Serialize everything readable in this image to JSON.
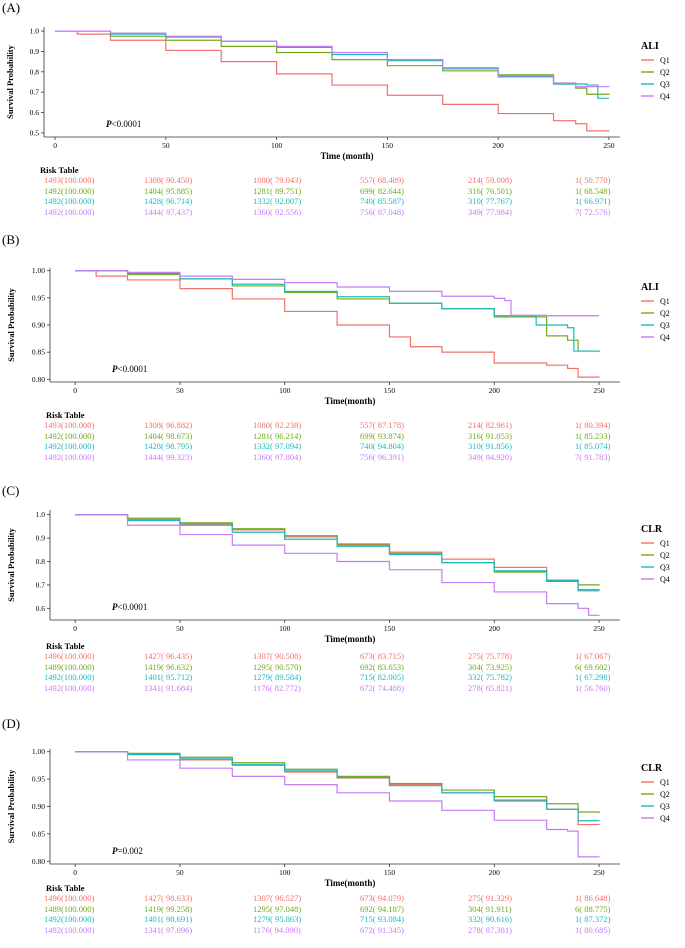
{
  "colors": {
    "Q1": "#f0716b",
    "Q2": "#70a91b",
    "Q3": "#1fb8bd",
    "Q4": "#c57cf5"
  },
  "risk_table_title": "Risk Table",
  "chart_data": [
    {
      "type": "line",
      "panel": "(A)",
      "ylabel": "Survival Probability",
      "xlabel": "Time (month)",
      "xlim": [
        -5,
        255
      ],
      "ylim": [
        0.48,
        1.02
      ],
      "xticks": [
        0,
        50,
        100,
        150,
        200,
        250
      ],
      "yticks": [
        0.5,
        0.6,
        0.7,
        0.8,
        0.9,
        1.0
      ],
      "ytick_labels": [
        "0.5",
        "0.6",
        "0.7",
        "0.8",
        "0.9",
        "1.0"
      ],
      "pvalue": "<0.0001",
      "legend_title": "ALI",
      "series": [
        {
          "name": "Q1",
          "x": [
            0,
            10,
            25,
            50,
            75,
            100,
            125,
            150,
            175,
            200,
            225,
            235,
            240,
            250
          ],
          "y": [
            1.0,
            0.985,
            0.955,
            0.905,
            0.85,
            0.79,
            0.735,
            0.685,
            0.64,
            0.595,
            0.56,
            0.545,
            0.51,
            0.508
          ]
        },
        {
          "name": "Q2",
          "x": [
            0,
            25,
            50,
            75,
            100,
            125,
            150,
            175,
            200,
            225,
            235,
            240,
            250
          ],
          "y": [
            1.0,
            0.975,
            0.955,
            0.925,
            0.895,
            0.86,
            0.83,
            0.805,
            0.785,
            0.74,
            0.72,
            0.69,
            0.686
          ]
        },
        {
          "name": "Q3",
          "x": [
            0,
            25,
            50,
            75,
            100,
            125,
            150,
            175,
            200,
            225,
            240,
            245,
            250
          ],
          "y": [
            1.0,
            0.985,
            0.97,
            0.95,
            0.92,
            0.885,
            0.855,
            0.815,
            0.775,
            0.74,
            0.735,
            0.67,
            0.67
          ]
        },
        {
          "name": "Q4",
          "x": [
            0,
            25,
            50,
            75,
            100,
            125,
            150,
            175,
            200,
            225,
            235,
            250
          ],
          "y": [
            1.0,
            0.99,
            0.975,
            0.95,
            0.925,
            0.895,
            0.86,
            0.82,
            0.78,
            0.745,
            0.727,
            0.726
          ]
        }
      ],
      "risk_table": [
        [
          "1493(100.000)",
          "1308( 90.450)",
          "1080( 79.043)",
          "557( 68.489)",
          "214( 59.008)",
          "1( 50.770)"
        ],
        [
          "1492(100.000)",
          "1404( 95.885)",
          "1281( 89.751)",
          "699( 82.644)",
          "316( 76.501)",
          "1( 68.548)"
        ],
        [
          "1492(100.000)",
          "1428( 96.714)",
          "1332( 92.007)",
          "740( 85.587)",
          "310( 77.767)",
          "1( 66.971)"
        ],
        [
          "1492(100.000)",
          "1444( 97.437)",
          "1360( 92.556)",
          "756( 87.048)",
          "349( 77.984)",
          "7( 72.576)"
        ]
      ]
    },
    {
      "type": "line",
      "panel": "(B)",
      "ylabel": "Survival Probability",
      "xlabel": "Time(month)",
      "xlim": [
        -12,
        260
      ],
      "ylim": [
        0.795,
        1.005
      ],
      "xticks": [
        0,
        50,
        100,
        150,
        200,
        250
      ],
      "yticks": [
        0.8,
        0.85,
        0.9,
        0.95,
        1.0
      ],
      "ytick_labels": [
        "0.80",
        "0.85",
        "0.90",
        "0.95",
        "1.00"
      ],
      "pvalue": "<0.0001",
      "legend_title": "ALI",
      "series": [
        {
          "name": "Q1",
          "x": [
            0,
            10,
            25,
            50,
            75,
            100,
            125,
            150,
            160,
            175,
            200,
            225,
            235,
            240,
            250
          ],
          "y": [
            1.0,
            0.99,
            0.983,
            0.967,
            0.948,
            0.925,
            0.9,
            0.878,
            0.86,
            0.85,
            0.83,
            0.826,
            0.82,
            0.804,
            0.803
          ]
        },
        {
          "name": "Q2",
          "x": [
            0,
            25,
            50,
            75,
            100,
            125,
            150,
            175,
            200,
            225,
            235,
            240,
            250
          ],
          "y": [
            1.0,
            0.993,
            0.985,
            0.972,
            0.96,
            0.948,
            0.94,
            0.93,
            0.915,
            0.88,
            0.872,
            0.852,
            0.85
          ]
        },
        {
          "name": "Q3",
          "x": [
            0,
            25,
            50,
            75,
            100,
            125,
            150,
            175,
            200,
            220,
            235,
            238,
            250
          ],
          "y": [
            1.0,
            0.995,
            0.985,
            0.975,
            0.962,
            0.952,
            0.94,
            0.93,
            0.917,
            0.9,
            0.895,
            0.852,
            0.85
          ]
        },
        {
          "name": "Q4",
          "x": [
            0,
            25,
            50,
            75,
            100,
            125,
            150,
            175,
            200,
            205,
            208,
            225,
            250
          ],
          "y": [
            1.0,
            0.997,
            0.99,
            0.984,
            0.978,
            0.97,
            0.962,
            0.953,
            0.949,
            0.945,
            0.918,
            0.917,
            0.917
          ]
        }
      ],
      "risk_table": [
        [
          "1493(100.000)",
          "1308( 96.882)",
          "1080( 92.238)",
          "557( 87.178)",
          "214( 82.961)",
          "1( 80.394)"
        ],
        [
          "1492(100.000)",
          "1404( 98.673)",
          "1281( 96.214)",
          "699( 93.874)",
          "316( 91.053)",
          "1( 85.233)"
        ],
        [
          "1492(100.000)",
          "1428( 98.795)",
          "1332( 97.094)",
          "740( 94.804)",
          "310( 91.856)",
          "1( 85.074)"
        ],
        [
          "1492(100.000)",
          "1444( 99.323)",
          "1360( 97.804)",
          "756( 96.391)",
          "349( 94.920)",
          "7( 91.783)"
        ]
      ]
    },
    {
      "type": "line",
      "panel": "(C)",
      "ylabel": "Survival Probability",
      "xlabel": "Time(month)",
      "xlim": [
        -12,
        260
      ],
      "ylim": [
        0.55,
        1.02
      ],
      "xticks": [
        0,
        50,
        100,
        150,
        200,
        250
      ],
      "yticks": [
        0.6,
        0.7,
        0.8,
        0.9,
        1.0
      ],
      "ytick_labels": [
        "0.6",
        "0.7",
        "0.8",
        "0.9",
        "1.0"
      ],
      "pvalue": "<0.0001",
      "legend_title": "CLR",
      "series": [
        {
          "name": "Q1",
          "x": [
            0,
            25,
            50,
            75,
            100,
            125,
            150,
            175,
            200,
            225,
            240,
            250
          ],
          "y": [
            1.0,
            0.98,
            0.96,
            0.935,
            0.905,
            0.87,
            0.84,
            0.81,
            0.775,
            0.72,
            0.68,
            0.678
          ]
        },
        {
          "name": "Q2",
          "x": [
            0,
            25,
            50,
            75,
            100,
            125,
            150,
            175,
            200,
            225,
            240,
            250
          ],
          "y": [
            1.0,
            0.985,
            0.965,
            0.94,
            0.91,
            0.875,
            0.835,
            0.795,
            0.755,
            0.715,
            0.7,
            0.697
          ]
        },
        {
          "name": "Q3",
          "x": [
            0,
            25,
            50,
            75,
            100,
            125,
            150,
            175,
            200,
            225,
            240,
            250
          ],
          "y": [
            1.0,
            0.975,
            0.955,
            0.925,
            0.895,
            0.865,
            0.83,
            0.795,
            0.76,
            0.72,
            0.675,
            0.673
          ]
        },
        {
          "name": "Q4",
          "x": [
            0,
            25,
            50,
            75,
            100,
            125,
            150,
            175,
            200,
            225,
            240,
            245,
            250
          ],
          "y": [
            1.0,
            0.955,
            0.915,
            0.87,
            0.835,
            0.8,
            0.765,
            0.71,
            0.67,
            0.62,
            0.6,
            0.57,
            0.568
          ]
        }
      ],
      "risk_table": [
        [
          "1496(100.000)",
          "1427( 96.435)",
          "1307( 90.508)",
          "673( 83.715)",
          "275( 75.778)",
          "1( 67.067)"
        ],
        [
          "1489(100.000)",
          "1419( 96.632)",
          "1295( 90.570)",
          "692( 83.653)",
          "304( 73.925)",
          "6( 69.602)"
        ],
        [
          "1492(100.000)",
          "1401( 95.712)",
          "1279( 89.584)",
          "715( 82.005)",
          "332( 75.782)",
          "1( 67.298)"
        ],
        [
          "1492(100.000)",
          "1341( 91.684)",
          "1176( 82.772)",
          "672( 74.488)",
          "278( 65.821)",
          "1( 56.760)"
        ]
      ]
    },
    {
      "type": "line",
      "panel": "(D)",
      "ylabel": "Survival Probability",
      "xlabel": "Time(month)",
      "xlim": [
        -12,
        260
      ],
      "ylim": [
        0.795,
        1.005
      ],
      "xticks": [
        0,
        50,
        100,
        150,
        200,
        250
      ],
      "yticks": [
        0.8,
        0.85,
        0.9,
        0.95,
        1.0
      ],
      "ytick_labels": [
        "0.80",
        "0.85",
        "0.90",
        "0.95",
        "1.00"
      ],
      "pvalue": "=0.002",
      "legend_title": "CLR",
      "series": [
        {
          "name": "Q1",
          "x": [
            0,
            25,
            50,
            75,
            100,
            125,
            150,
            175,
            200,
            225,
            240,
            250
          ],
          "y": [
            1.0,
            0.995,
            0.985,
            0.975,
            0.963,
            0.952,
            0.94,
            0.925,
            0.912,
            0.895,
            0.867,
            0.866
          ]
        },
        {
          "name": "Q2",
          "x": [
            0,
            25,
            50,
            75,
            100,
            125,
            150,
            175,
            200,
            225,
            240,
            250
          ],
          "y": [
            1.0,
            0.997,
            0.99,
            0.98,
            0.968,
            0.955,
            0.942,
            0.93,
            0.918,
            0.905,
            0.89,
            0.888
          ]
        },
        {
          "name": "Q3",
          "x": [
            0,
            25,
            50,
            75,
            100,
            125,
            150,
            175,
            200,
            225,
            240,
            250
          ],
          "y": [
            1.0,
            0.995,
            0.987,
            0.977,
            0.965,
            0.953,
            0.938,
            0.925,
            0.91,
            0.895,
            0.874,
            0.873
          ]
        },
        {
          "name": "Q4",
          "x": [
            0,
            25,
            50,
            75,
            100,
            125,
            150,
            175,
            200,
            225,
            235,
            240,
            250
          ],
          "y": [
            1.0,
            0.985,
            0.97,
            0.955,
            0.94,
            0.925,
            0.91,
            0.893,
            0.875,
            0.858,
            0.855,
            0.808,
            0.807
          ]
        }
      ],
      "risk_table": [
        [
          "1496(100.000)",
          "1427( 98.633)",
          "1307( 96.527)",
          "673( 94.079)",
          "275( 91.329)",
          "1( 86.648)"
        ],
        [
          "1489(100.000)",
          "1419( 99.258)",
          "1295( 97.048)",
          "692( 94.187)",
          "304( 91.911)",
          "6( 88.775)"
        ],
        [
          "1492(100.000)",
          "1401( 98.691)",
          "1279( 95.863)",
          "715( 93.084)",
          "332( 90.616)",
          "1( 87.372)"
        ],
        [
          "1492(100.000)",
          "1341( 97.096)",
          "1176( 94.090)",
          "672( 91.345)",
          "278( 87.381)",
          "1( 80.685)"
        ]
      ]
    }
  ]
}
